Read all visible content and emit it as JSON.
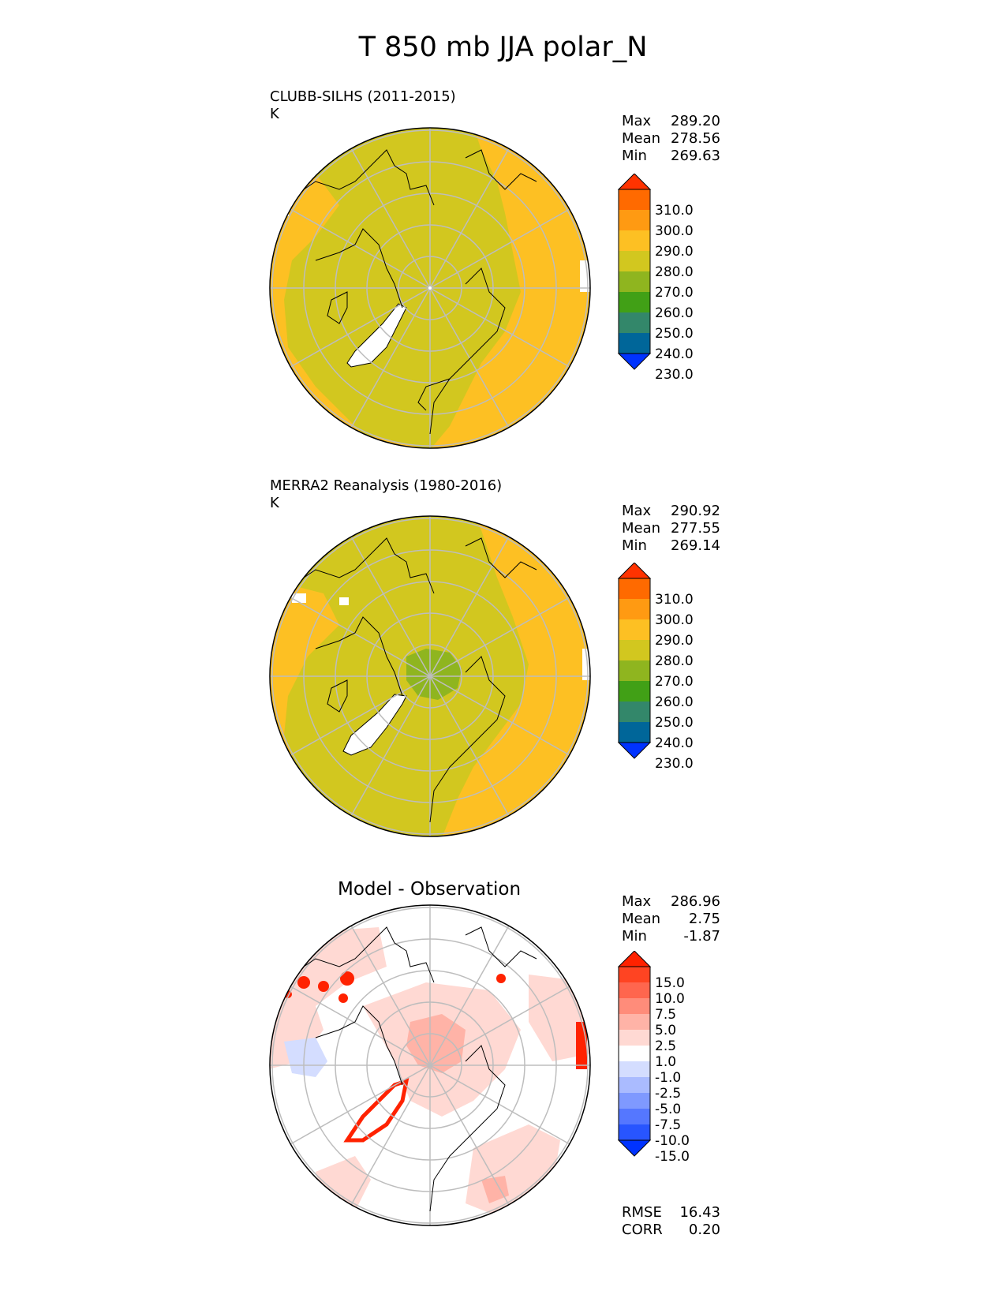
{
  "title": "T 850 mb JJA polar_N",
  "panels": [
    {
      "label": "CLUBB-SILHS (2011-2015)",
      "units": "K",
      "stats": [
        [
          "Max",
          "289.20"
        ],
        [
          "Mean",
          "278.56"
        ],
        [
          "Min",
          "269.63"
        ]
      ],
      "colorbar": [
        "310.0",
        "300.0",
        "290.0",
        "280.0",
        "270.0",
        "260.0",
        "250.0",
        "240.0",
        "230.0"
      ]
    },
    {
      "label": "MERRA2 Reanalysis (1980-2016)",
      "units": "K",
      "stats": [
        [
          "Max",
          "290.92"
        ],
        [
          "Mean",
          "277.55"
        ],
        [
          "Min",
          "269.14"
        ]
      ],
      "colorbar": [
        "310.0",
        "300.0",
        "290.0",
        "280.0",
        "270.0",
        "260.0",
        "250.0",
        "240.0",
        "230.0"
      ]
    },
    {
      "label": "Model - Observation",
      "stats": [
        [
          "Max",
          "286.96"
        ],
        [
          "Mean",
          "2.75"
        ],
        [
          "Min",
          "-1.87"
        ]
      ],
      "colorbar": [
        "15.0",
        "10.0",
        "7.5",
        "5.0",
        "2.5",
        "1.0",
        "-1.0",
        "-2.5",
        "-5.0",
        "-7.5",
        "-10.0",
        "-15.0"
      ],
      "metrics": [
        [
          "RMSE",
          "16.43"
        ],
        [
          "CORR",
          "0.20"
        ]
      ]
    }
  ],
  "colors": {
    "abs_bar": [
      "#0033ff",
      "#006699",
      "#33876a",
      "#41a016",
      "#8fb51f",
      "#d2c71f",
      "#fdc023",
      "#ff9a12",
      "#ff6a00",
      "#ff3300"
    ],
    "diff_bar": [
      "#0033ff",
      "#2855ff",
      "#5577ff",
      "#7f99ff",
      "#aabbff",
      "#d4ddff",
      "#ffffff",
      "#ffd9d3",
      "#ffb3a7",
      "#ff8c7a",
      "#ff664e",
      "#ff4422",
      "#ff2200"
    ]
  }
}
